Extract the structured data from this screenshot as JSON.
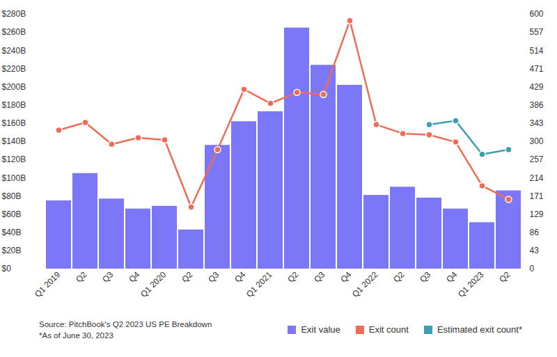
{
  "chart_data": {
    "type": "bar",
    "categories": [
      "Q1 2019",
      "Q2",
      "Q3",
      "Q4",
      "Q1 2020",
      "Q2",
      "Q3",
      "Q4",
      "Q1 2021",
      "Q2",
      "Q3",
      "Q4",
      "Q1 2022",
      "Q2",
      "Q3",
      "Q4",
      "Q1 2023",
      "Q2"
    ],
    "series": [
      {
        "name": "Exit value",
        "type": "bar",
        "color": "#7b77f6",
        "values": [
          75,
          105,
          77,
          66,
          69,
          43,
          136,
          162,
          173,
          265,
          224,
          202,
          81,
          90,
          78,
          66,
          51,
          86
        ]
      },
      {
        "name": "Exit count",
        "type": "line",
        "axis": "y2",
        "color": "#ee6c56",
        "marker": "circle",
        "values": [
          327,
          345,
          294,
          309,
          304,
          146,
          281,
          423,
          390,
          416,
          411,
          585,
          340,
          319,
          316,
          299,
          196,
          164
        ]
      },
      {
        "name": "Estimated exit count*",
        "type": "line",
        "axis": "y2",
        "color": "#3b9fb3",
        "marker": "circle",
        "values": [
          null,
          null,
          null,
          null,
          null,
          null,
          null,
          null,
          null,
          null,
          null,
          null,
          null,
          null,
          340,
          349,
          270,
          281
        ]
      }
    ],
    "ylim": [
      0,
      280
    ],
    "yticks": [
      {
        "value": 0,
        "label": "$0"
      },
      {
        "value": 20,
        "label": "$20B"
      },
      {
        "value": 40,
        "label": "$40B"
      },
      {
        "value": 60,
        "label": "$60B"
      },
      {
        "value": 80,
        "label": "$80B"
      },
      {
        "value": 100,
        "label": "$100B"
      },
      {
        "value": 120,
        "label": "$120B"
      },
      {
        "value": 140,
        "label": "$140B"
      },
      {
        "value": 160,
        "label": "$160B"
      },
      {
        "value": 180,
        "label": "$180B"
      },
      {
        "value": 200,
        "label": "$200B"
      },
      {
        "value": 220,
        "label": "$220B"
      },
      {
        "value": 240,
        "label": "$240B"
      },
      {
        "value": 260,
        "label": "$260B"
      },
      {
        "value": 280,
        "label": "$280B"
      }
    ],
    "y2lim": [
      0,
      600
    ],
    "y2ticks": [
      0,
      {
        "value": 42.86,
        "label": "43"
      },
      {
        "value": 85.71,
        "label": "86"
      },
      {
        "value": 128.57,
        "label": "129"
      },
      {
        "value": 171.43,
        "label": "171"
      },
      {
        "value": 214.29,
        "label": "214"
      },
      {
        "value": 257.14,
        "label": "257"
      },
      300,
      {
        "value": 342.86,
        "label": "343"
      },
      {
        "value": 385.71,
        "label": "386"
      },
      {
        "value": 428.57,
        "label": "429"
      },
      {
        "value": 471.43,
        "label": "471"
      },
      {
        "value": 514.29,
        "label": "514"
      },
      {
        "value": 557.14,
        "label": "557"
      },
      600
    ],
    "grid": false,
    "legend": "bottom right",
    "notes": [
      "Source: PitchBook's Q2 2023 US PE Breakdown",
      "*As of June 30, 2023"
    ]
  }
}
